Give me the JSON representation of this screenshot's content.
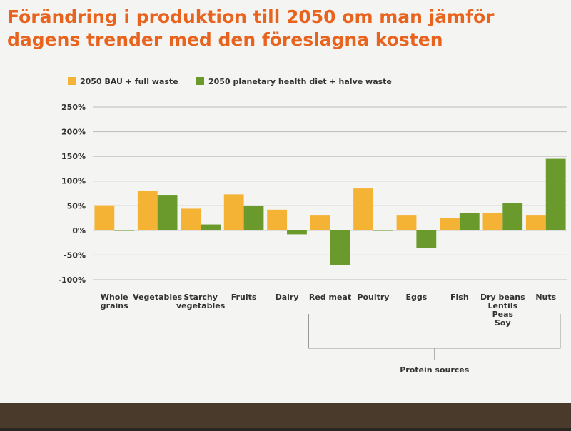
{
  "chart_data": {
    "type": "bar",
    "title": "Förändring i produktion till 2050 om man jämför dagens trender med den föreslagna kosten",
    "categories": [
      [
        "Whole",
        "grains"
      ],
      [
        "Vegetables"
      ],
      [
        "Starchy",
        "vegetables"
      ],
      [
        "Fruits"
      ],
      [
        "Dairy"
      ],
      [
        "Red meat"
      ],
      [
        "Poultry"
      ],
      [
        "Eggs"
      ],
      [
        "Fish"
      ],
      [
        "Dry beans",
        "Lentils",
        "Peas",
        "Soy"
      ],
      [
        "Nuts"
      ]
    ],
    "series": [
      {
        "name": "2050 BAU + full waste",
        "color": "#f5b335",
        "values": [
          51,
          80,
          44,
          73,
          42,
          30,
          85,
          30,
          25,
          35,
          30
        ]
      },
      {
        "name": "2050 planetary health diet + halve waste",
        "color": "#6a9a2c",
        "values": [
          -1,
          72,
          12,
          50,
          -8,
          -70,
          -1,
          -35,
          35,
          55,
          145
        ]
      }
    ],
    "ylim": [
      -100,
      250
    ],
    "yticks": [
      {
        "value": -100,
        "label": "-100%"
      },
      {
        "value": -50,
        "label": "-50%"
      },
      {
        "value": 0,
        "label": "0%"
      },
      {
        "value": 50,
        "label": "50%"
      },
      {
        "value": 100,
        "label": "100%"
      },
      {
        "value": 150,
        "label": "150%"
      },
      {
        "value": 200,
        "label": "200%"
      },
      {
        "value": 250,
        "label": "250%"
      }
    ],
    "grid": true,
    "annotation": "Protein sources"
  }
}
